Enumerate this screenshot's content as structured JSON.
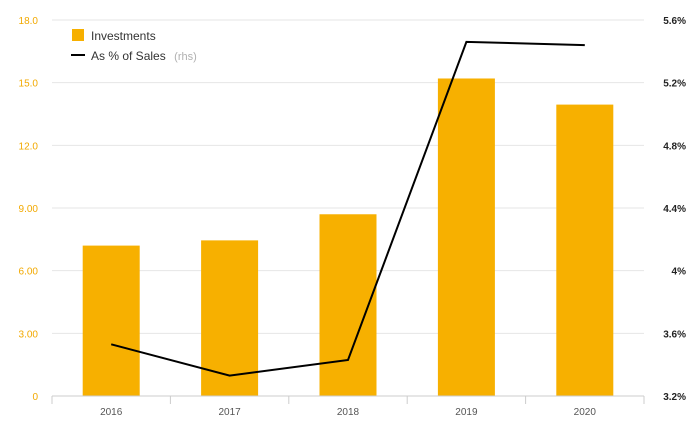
{
  "chart_data": {
    "type": "bar",
    "categories": [
      "2016",
      "2017",
      "2018",
      "2019",
      "2020"
    ],
    "series": [
      {
        "name": "Investments",
        "type": "bar",
        "axis": "left",
        "color": "#f7b000",
        "values": [
          7.2,
          7.45,
          8.7,
          15.2,
          13.95
        ]
      },
      {
        "name": "As % of Sales",
        "name_note": "(rhs)",
        "type": "line",
        "axis": "right",
        "color": "#000000",
        "values": [
          3.53,
          3.33,
          3.43,
          5.46,
          5.44
        ]
      }
    ],
    "left_axis": {
      "range": [
        0,
        18
      ],
      "ticks": [
        0,
        3,
        6,
        9,
        12,
        15,
        18
      ],
      "tick_labels": [
        "0",
        "3.00",
        "6.00",
        "9.00",
        "12.0",
        "15.0",
        "18.0"
      ],
      "label_color": "#f2a900"
    },
    "right_axis": {
      "range": [
        3.2,
        5.6
      ],
      "ticks": [
        3.2,
        3.6,
        4.0,
        4.4,
        4.8,
        5.2,
        5.6
      ],
      "tick_labels": [
        "3.2%",
        "3.6%",
        "4%",
        "4.4%",
        "4.8%",
        "5.2%",
        "5.6%"
      ]
    },
    "grid": true,
    "legend_position": "top-left"
  }
}
